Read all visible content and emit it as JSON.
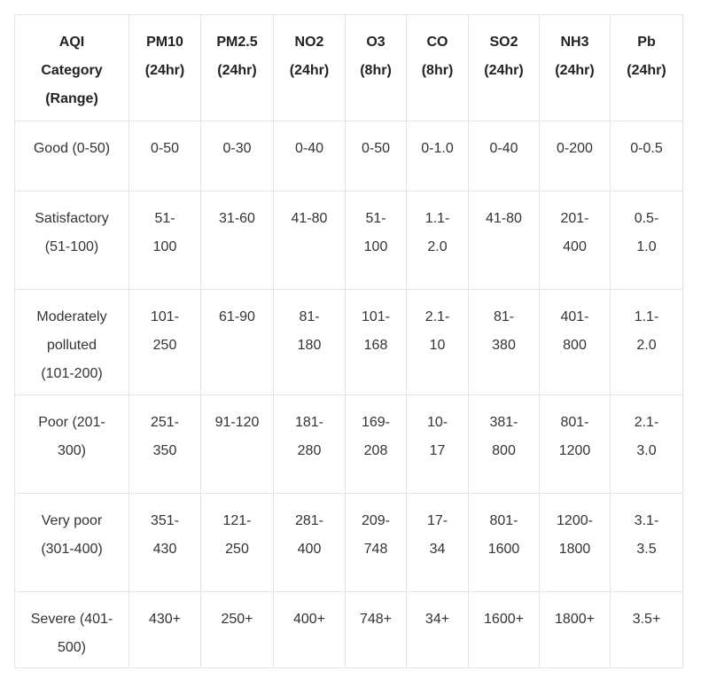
{
  "table": {
    "headers": [
      [
        "AQI",
        "Category",
        "(Range)"
      ],
      [
        "PM10",
        "(24hr)"
      ],
      [
        "PM2.5",
        "(24hr)"
      ],
      [
        "NO2",
        "(24hr)"
      ],
      [
        "O3",
        "(8hr)"
      ],
      [
        "CO",
        "(8hr)"
      ],
      [
        "SO2",
        "(24hr)"
      ],
      [
        "NH3",
        "(24hr)"
      ],
      [
        "Pb",
        "(24hr)"
      ]
    ],
    "rows": [
      [
        [
          "Good (0-50)"
        ],
        [
          "0-50"
        ],
        [
          "0-30"
        ],
        [
          "0-40"
        ],
        [
          "0-50"
        ],
        [
          "0-1.0"
        ],
        [
          "0-40"
        ],
        [
          "0-200"
        ],
        [
          "0-0.5"
        ]
      ],
      [
        [
          "Satisfactory",
          "(51-100)"
        ],
        [
          "51-",
          "100"
        ],
        [
          "31-60"
        ],
        [
          "41-80"
        ],
        [
          "51-",
          "100"
        ],
        [
          "1.1-",
          "2.0"
        ],
        [
          "41-80"
        ],
        [
          "201-",
          "400"
        ],
        [
          "0.5-",
          "1.0"
        ]
      ],
      [
        [
          "Moderately",
          "polluted",
          "(101-200)"
        ],
        [
          "101-",
          "250"
        ],
        [
          "61-90"
        ],
        [
          "81-",
          "180"
        ],
        [
          "101-",
          "168"
        ],
        [
          "2.1-",
          "10"
        ],
        [
          "81-",
          "380"
        ],
        [
          "401-",
          "800"
        ],
        [
          "1.1-",
          "2.0"
        ]
      ],
      [
        [
          "Poor (201-",
          "300)"
        ],
        [
          "251-",
          "350"
        ],
        [
          "91-120"
        ],
        [
          "181-",
          "280"
        ],
        [
          "169-",
          "208"
        ],
        [
          "10-",
          "17"
        ],
        [
          "381-",
          "800"
        ],
        [
          "801-",
          "1200"
        ],
        [
          "2.1-",
          "3.0"
        ]
      ],
      [
        [
          "Very poor",
          "(301-400)"
        ],
        [
          "351-",
          "430"
        ],
        [
          "121-",
          "250"
        ],
        [
          "281-",
          "400"
        ],
        [
          "209-",
          "748"
        ],
        [
          "17-",
          "34"
        ],
        [
          "801-",
          "1600"
        ],
        [
          "1200-",
          "1800"
        ],
        [
          "3.1-",
          "3.5"
        ]
      ],
      [
        [
          "Severe (401-",
          "500)"
        ],
        [
          "430+"
        ],
        [
          "250+"
        ],
        [
          "400+"
        ],
        [
          "748+"
        ],
        [
          "34+"
        ],
        [
          "1600+"
        ],
        [
          "1800+"
        ],
        [
          "3.5+"
        ]
      ]
    ]
  }
}
